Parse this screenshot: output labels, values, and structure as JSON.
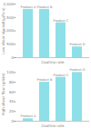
{
  "chart_data": [
    {
      "type": "bar",
      "categories": [
        "Product A",
        "Product B",
        "Product C",
        "Product D"
      ],
      "values": [
        1800,
        1800,
        1300,
        400
      ],
      "ylabel": "Low shear viscosity (Pa.s)",
      "xlabel": "Coating rate",
      "ylim": [
        0,
        2000
      ],
      "yticks": [
        0,
        500,
        1000,
        1500,
        2000
      ],
      "color": "#8ee0e8",
      "tick_labels": "y"
    },
    {
      "type": "bar",
      "categories": [
        "Product A",
        "Product B",
        "Product C",
        "Product D"
      ],
      "values": [
        5,
        80,
        90,
        100
      ],
      "ylabel": "High shear flow (g/min)",
      "xlabel": "Coating rate",
      "ylim": [
        0,
        110
      ],
      "yticks": [
        0,
        20,
        40,
        60,
        80,
        100
      ],
      "color": "#8ee0e8",
      "tick_labels": "y"
    }
  ]
}
